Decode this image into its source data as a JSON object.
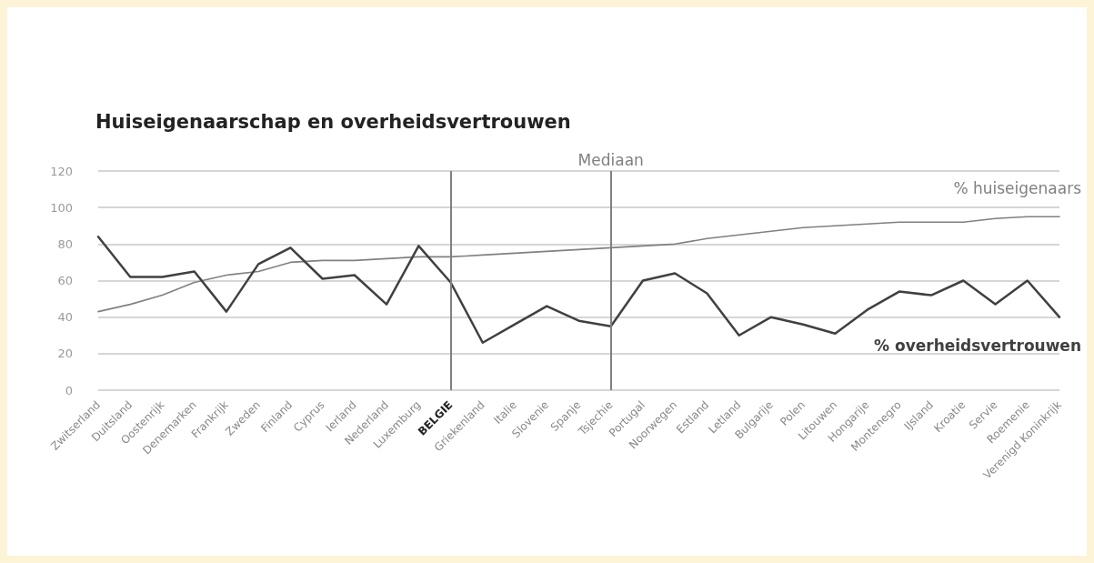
{
  "chart_data": {
    "type": "line",
    "title": "Huiseigenaarschap en overheidsvertrouwen",
    "categories": [
      "Zwitserland",
      "Duitsland",
      "Oostenrijk",
      "Denemarken",
      "Frankrijk",
      "Zweden",
      "Finland",
      "Cyprus",
      "Ierland",
      "Nederland",
      "Luxemburg",
      "BELGIE",
      "Griekenland",
      "Italie",
      "Slovenie",
      "Spanje",
      "Tsjechie",
      "Portugal",
      "Noorwegen",
      "Estland",
      "Letland",
      "Bulgarije",
      "Polen",
      "Litouwen",
      "Hongarije",
      "Montenegro",
      "IJsland",
      "Kroatie",
      "Servie",
      "Roemenie",
      "Verenigd Koninkrijk"
    ],
    "series": [
      {
        "name": "% huiseigenaars",
        "color": "#808080",
        "values": [
          43,
          47,
          52,
          59,
          63,
          65,
          70,
          71,
          71,
          72,
          73,
          73,
          74,
          75,
          76,
          77,
          78,
          79,
          80,
          83,
          85,
          87,
          89,
          90,
          91,
          92,
          92,
          92,
          94,
          95,
          95
        ]
      },
      {
        "name": "% overheidsvertrouwen",
        "color": "#404040",
        "values": [
          84,
          62,
          62,
          65,
          43,
          69,
          78,
          61,
          63,
          47,
          79,
          59,
          26,
          36,
          46,
          38,
          35,
          60,
          64,
          53,
          30,
          40,
          36,
          31,
          44,
          54,
          52,
          60,
          47,
          60,
          40
        ]
      }
    ],
    "ylim": [
      0,
      120
    ],
    "yticks": [
      0,
      20,
      40,
      60,
      80,
      100,
      120
    ],
    "grid": "y",
    "legend": false,
    "marker": "none",
    "line_style": "solid",
    "ref_lines": [
      {
        "axis": "x",
        "value": "BELGIE",
        "label": null,
        "color": "#808080"
      },
      {
        "axis": "x",
        "value": "Tsjechie",
        "label": "Mediaan",
        "color": "#808080"
      }
    ]
  }
}
